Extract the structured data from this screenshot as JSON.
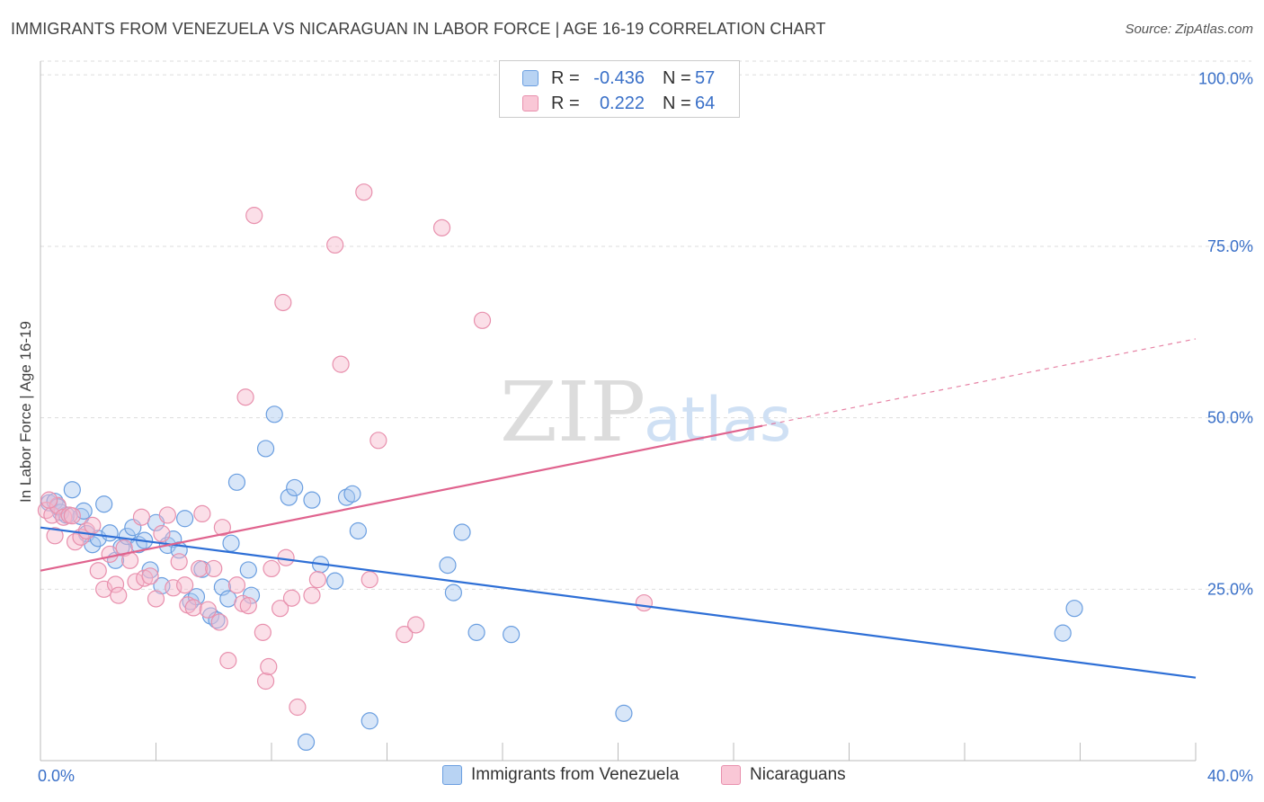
{
  "title": "IMMIGRANTS FROM VENEZUELA VS NICARAGUAN IN LABOR FORCE | AGE 16-19 CORRELATION CHART",
  "source": "Source: ZipAtlas.com",
  "watermark": {
    "zip": "ZIP",
    "atlas": "atlas"
  },
  "legend": {
    "r_label": "R =",
    "n_label": "N =",
    "series": [
      {
        "name": "Immigrants from Venezuela",
        "r": "-0.436",
        "n": "57"
      },
      {
        "name": "Nicaraguans",
        "r": "0.222",
        "n": "64"
      }
    ]
  },
  "colors": {
    "blue_fill": "#a8c8f0",
    "blue_stroke": "#6a9ee0",
    "blue_line": "#2e6fd6",
    "pink_fill": "#f7b8cc",
    "pink_stroke": "#e890ad",
    "pink_line": "#e0638e",
    "grid": "#dddddd",
    "axis_tick_label": "#3a70c8"
  },
  "chart_data": {
    "type": "scatter",
    "title": "IMMIGRANTS FROM VENEZUELA VS NICARAGUAN IN LABOR FORCE | AGE 16-19 CORRELATION CHART",
    "xlabel": "",
    "ylabel": "In Labor Force | Age 16-19",
    "xlim": [
      0,
      40
    ],
    "ylim": [
      0,
      102
    ],
    "x_tick_labels": [
      {
        "value": 0,
        "label": "0.0%"
      },
      {
        "value": 40,
        "label": "40.0%"
      }
    ],
    "y_tick_labels": [
      {
        "value": 25,
        "label": "25.0%"
      },
      {
        "value": 50,
        "label": "50.0%"
      },
      {
        "value": 75,
        "label": "75.0%"
      },
      {
        "value": 100,
        "label": "100.0%"
      }
    ],
    "grid": true,
    "legend_position": "top-center",
    "series": [
      {
        "name": "Immigrants from Venezuela",
        "color": "blue",
        "trend": {
          "x": [
            0,
            40
          ],
          "y": [
            34.0,
            12.1
          ],
          "dashed_from": null
        },
        "points": [
          [
            0.3,
            37.6
          ],
          [
            0.5,
            37.8
          ],
          [
            0.7,
            36.2
          ],
          [
            0.9,
            35.8
          ],
          [
            1.1,
            39.5
          ],
          [
            1.4,
            35.6
          ],
          [
            1.5,
            36.4
          ],
          [
            1.6,
            33.1
          ],
          [
            1.8,
            31.5
          ],
          [
            2.0,
            32.4
          ],
          [
            2.2,
            37.4
          ],
          [
            2.4,
            33.2
          ],
          [
            2.6,
            29.2
          ],
          [
            2.8,
            31.1
          ],
          [
            3.0,
            32.7
          ],
          [
            3.2,
            34.0
          ],
          [
            3.4,
            31.5
          ],
          [
            3.6,
            32.1
          ],
          [
            3.8,
            27.8
          ],
          [
            4.0,
            34.7
          ],
          [
            4.2,
            25.5
          ],
          [
            4.4,
            31.4
          ],
          [
            4.6,
            32.3
          ],
          [
            4.8,
            30.7
          ],
          [
            5.0,
            35.3
          ],
          [
            5.2,
            23.2
          ],
          [
            5.4,
            23.9
          ],
          [
            5.6,
            27.9
          ],
          [
            5.9,
            21.1
          ],
          [
            6.1,
            20.5
          ],
          [
            6.3,
            25.3
          ],
          [
            6.5,
            23.6
          ],
          [
            6.6,
            31.7
          ],
          [
            6.8,
            40.6
          ],
          [
            7.2,
            27.8
          ],
          [
            7.3,
            24.1
          ],
          [
            7.8,
            45.5
          ],
          [
            8.1,
            50.5
          ],
          [
            8.6,
            38.4
          ],
          [
            8.8,
            39.8
          ],
          [
            9.2,
            2.7
          ],
          [
            9.4,
            38.0
          ],
          [
            9.7,
            28.6
          ],
          [
            10.2,
            26.2
          ],
          [
            10.6,
            38.4
          ],
          [
            10.8,
            38.9
          ],
          [
            11.0,
            33.5
          ],
          [
            11.4,
            5.8
          ],
          [
            14.1,
            28.5
          ],
          [
            14.3,
            24.5
          ],
          [
            14.6,
            33.3
          ],
          [
            15.1,
            18.7
          ],
          [
            16.3,
            18.4
          ],
          [
            20.2,
            6.9
          ],
          [
            35.4,
            18.6
          ],
          [
            35.8,
            22.2
          ],
          [
            0.6,
            37.0
          ]
        ]
      },
      {
        "name": "Nicaraguans",
        "color": "pink",
        "trend": {
          "x": [
            0,
            40
          ],
          "y": [
            27.7,
            61.5
          ],
          "dashed_from": 25
        },
        "points": [
          [
            0.2,
            36.5
          ],
          [
            0.4,
            35.8
          ],
          [
            0.5,
            32.8
          ],
          [
            0.6,
            37.2
          ],
          [
            0.8,
            35.5
          ],
          [
            1.0,
            35.8
          ],
          [
            1.2,
            31.9
          ],
          [
            1.4,
            32.6
          ],
          [
            1.6,
            33.5
          ],
          [
            1.8,
            34.3
          ],
          [
            2.0,
            27.7
          ],
          [
            2.2,
            25.0
          ],
          [
            2.4,
            30.1
          ],
          [
            2.6,
            25.7
          ],
          [
            2.7,
            24.1
          ],
          [
            2.9,
            31.0
          ],
          [
            3.1,
            29.2
          ],
          [
            3.3,
            26.1
          ],
          [
            3.5,
            35.5
          ],
          [
            3.6,
            26.6
          ],
          [
            3.8,
            26.9
          ],
          [
            4.0,
            23.6
          ],
          [
            4.2,
            33.1
          ],
          [
            4.4,
            35.8
          ],
          [
            4.6,
            25.2
          ],
          [
            4.8,
            29.0
          ],
          [
            5.0,
            25.6
          ],
          [
            5.1,
            22.7
          ],
          [
            5.3,
            22.3
          ],
          [
            5.5,
            28.0
          ],
          [
            5.6,
            36.0
          ],
          [
            5.8,
            22.0
          ],
          [
            6.0,
            28.0
          ],
          [
            6.2,
            20.2
          ],
          [
            6.3,
            34.0
          ],
          [
            6.5,
            14.6
          ],
          [
            6.8,
            25.6
          ],
          [
            7.0,
            22.9
          ],
          [
            7.1,
            53.0
          ],
          [
            7.2,
            22.6
          ],
          [
            7.4,
            79.5
          ],
          [
            7.7,
            18.7
          ],
          [
            7.8,
            11.6
          ],
          [
            7.9,
            13.7
          ],
          [
            8.0,
            28.0
          ],
          [
            8.3,
            22.2
          ],
          [
            8.4,
            66.8
          ],
          [
            8.5,
            29.6
          ],
          [
            8.7,
            23.7
          ],
          [
            8.9,
            7.8
          ],
          [
            9.4,
            24.1
          ],
          [
            9.6,
            26.4
          ],
          [
            10.2,
            75.2
          ],
          [
            10.4,
            57.8
          ],
          [
            11.2,
            82.9
          ],
          [
            11.4,
            26.4
          ],
          [
            11.7,
            46.7
          ],
          [
            12.6,
            18.4
          ],
          [
            13.0,
            19.8
          ],
          [
            13.9,
            77.7
          ],
          [
            15.3,
            64.2
          ],
          [
            20.9,
            23.0
          ],
          [
            0.3,
            38.0
          ],
          [
            1.1,
            35.7
          ]
        ]
      }
    ]
  }
}
